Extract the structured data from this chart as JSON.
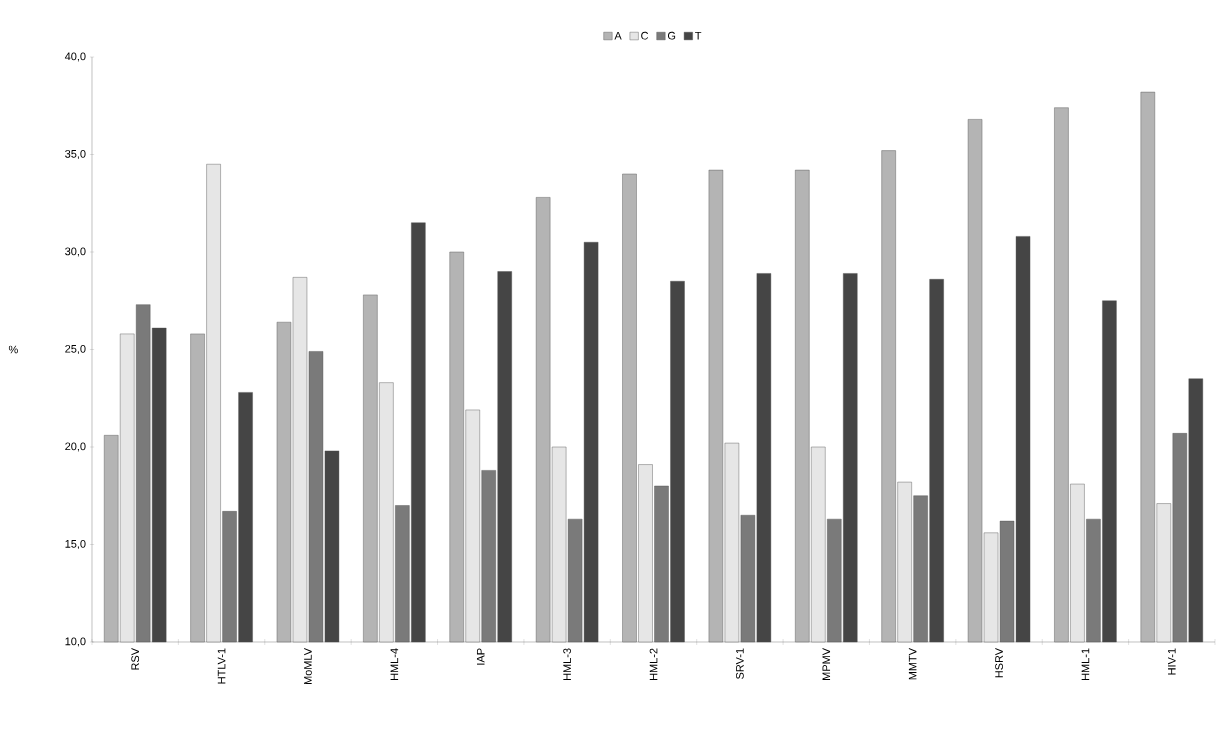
{
  "chart_data": {
    "type": "bar",
    "ylabel": "%",
    "categories": [
      "RSV",
      "HTLV-1",
      "MoMLV",
      "HML-4",
      "IAP",
      "HML-3",
      "HML-2",
      "SRV-1",
      "MPMV",
      "MMTV",
      "HSRV",
      "HML-1",
      "HIV-1"
    ],
    "series": [
      {
        "name": "A",
        "color": "#b4b4b4",
        "values": [
          20.6,
          25.8,
          26.4,
          27.8,
          30.0,
          32.8,
          34.0,
          34.2,
          34.2,
          35.2,
          36.8,
          37.4,
          38.2
        ]
      },
      {
        "name": "C",
        "color": "#e6e6e6",
        "values": [
          25.8,
          34.5,
          28.7,
          23.3,
          21.9,
          20.0,
          19.1,
          20.2,
          20.0,
          18.2,
          15.6,
          18.1,
          17.1
        ]
      },
      {
        "name": "G",
        "color": "#7a7a7a",
        "values": [
          27.3,
          16.7,
          24.9,
          17.0,
          18.8,
          16.3,
          18.0,
          16.5,
          16.3,
          17.5,
          16.2,
          16.3,
          20.7
        ]
      },
      {
        "name": "T",
        "color": "#454545",
        "values": [
          26.1,
          22.8,
          19.8,
          31.5,
          29.0,
          30.5,
          28.5,
          28.9,
          28.9,
          28.6,
          30.8,
          27.5,
          23.5
        ]
      }
    ],
    "ylim": [
      10,
      40
    ],
    "yticks": [
      {
        "value": 10,
        "label": "10,0"
      },
      {
        "value": 15,
        "label": "15,0"
      },
      {
        "value": 20,
        "label": "20,0"
      },
      {
        "value": 25,
        "label": "25,0"
      },
      {
        "value": 30,
        "label": "30,0"
      },
      {
        "value": 35,
        "label": "35,0"
      },
      {
        "value": 40,
        "label": "40,0"
      }
    ],
    "grid": false,
    "legend": "top"
  }
}
